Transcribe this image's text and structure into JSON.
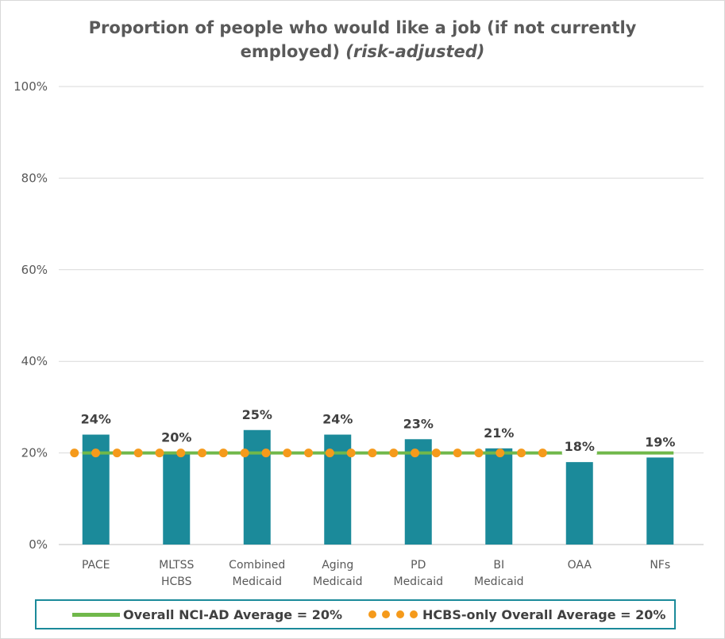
{
  "chart_data": {
    "type": "bar",
    "title": "Proportion of people who would like a job (if not currently employed)",
    "title_line1": "Proportion of people who would like a job (if not currently",
    "title_line2": "employed)",
    "subtitle": "(risk-adjusted)",
    "categories": [
      "PACE",
      "MLTSS HCBS",
      "Combined Medicaid",
      "Aging Medicaid",
      "PD Medicaid",
      "BI Medicaid",
      "OAA",
      "NFs"
    ],
    "category_lines": [
      [
        "PACE"
      ],
      [
        "MLTSS",
        "HCBS"
      ],
      [
        "Combined",
        "Medicaid"
      ],
      [
        "Aging",
        "Medicaid"
      ],
      [
        "PD",
        "Medicaid"
      ],
      [
        "BI",
        "Medicaid"
      ],
      [
        "OAA"
      ],
      [
        "NFs"
      ]
    ],
    "values": [
      24,
      20,
      25,
      24,
      23,
      21,
      18,
      19
    ],
    "data_labels": [
      "24%",
      "20%",
      "25%",
      "24%",
      "23%",
      "21%",
      "18%",
      "19%"
    ],
    "ylim": [
      0,
      100
    ],
    "yticks": [
      0,
      20,
      40,
      60,
      80,
      100
    ],
    "ytick_labels": [
      "0%",
      "20%",
      "40%",
      "60%",
      "80%",
      "100%"
    ],
    "xlabel": "",
    "ylabel": "",
    "grid": true,
    "legend_position": "bottom",
    "reference_lines": [
      {
        "name": "Overall NCI-AD Average = 20%",
        "value": 20,
        "style": "solid",
        "color": "#70b84a"
      },
      {
        "name": "HCBS-only Overall Average = 20%",
        "value": 20,
        "style": "dotted",
        "color": "#f59a1b"
      }
    ],
    "bar_color": "#1b8a9a"
  }
}
